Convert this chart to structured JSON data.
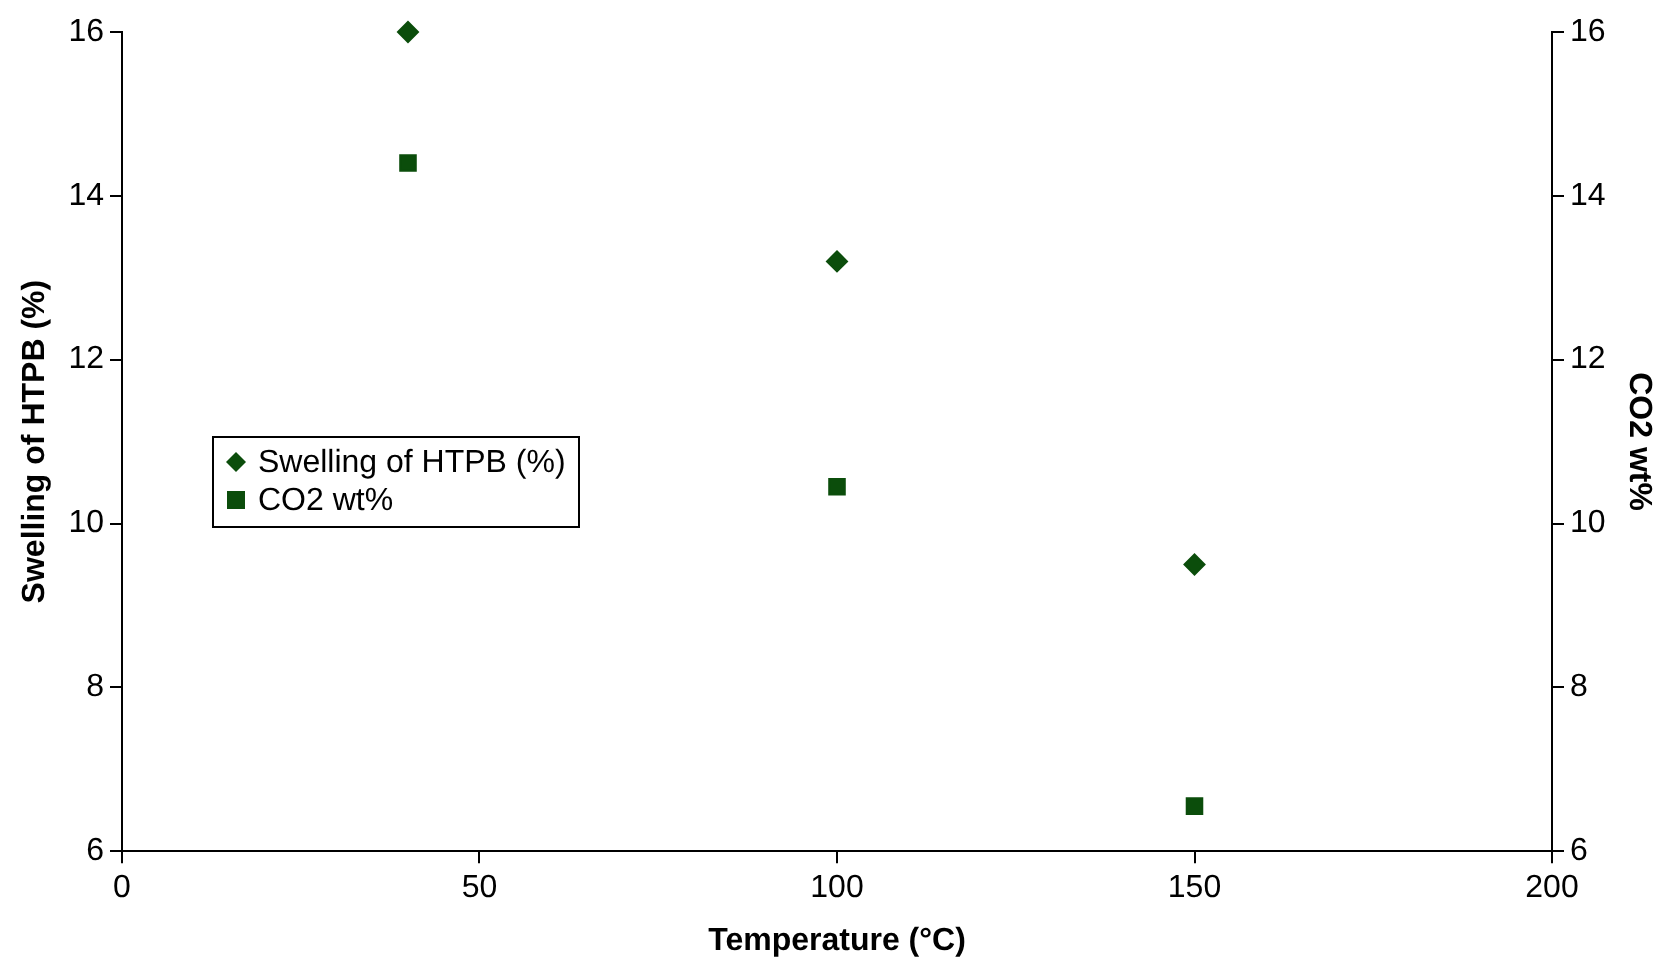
{
  "chart_data": {
    "type": "scatter",
    "xlabel": "Temperature (°C)",
    "ylabel": "Swelling of HTPB (%)",
    "y2label": "CO2 wt%",
    "xlim": [
      0,
      200
    ],
    "xticks": [
      0,
      50,
      100,
      150,
      200
    ],
    "ylim": [
      6,
      16
    ],
    "yticks": [
      6,
      8,
      10,
      12,
      14,
      16
    ],
    "y2lim": [
      6,
      16
    ],
    "y2ticks": [
      6,
      8,
      10,
      12,
      14,
      16
    ],
    "grid": false,
    "legend": "left",
    "series": [
      {
        "name": "Swelling of HTPB (%)",
        "color": "#0b4d0b",
        "marker": "diamond",
        "x": [
          40,
          100,
          150
        ],
        "values": [
          16,
          13.2,
          9.5
        ]
      },
      {
        "name": "CO2 wt%",
        "color": "#0b4d0b",
        "marker": "square",
        "axis": "y2",
        "x": [
          40,
          100,
          150
        ],
        "values": [
          14.4,
          10.45,
          6.55
        ]
      }
    ]
  }
}
